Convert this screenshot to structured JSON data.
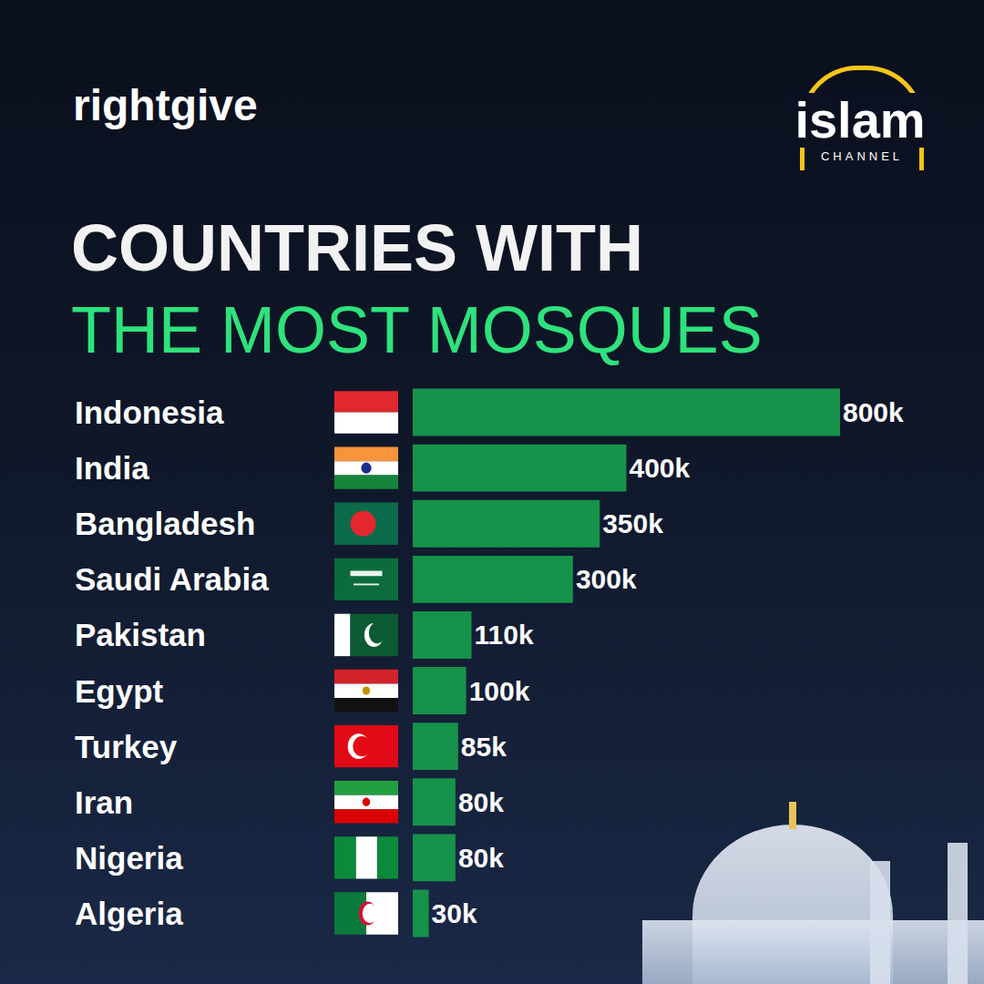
{
  "header": {
    "brand": "rightgive",
    "logo": "islam",
    "logo_subtext": "CHANNEL"
  },
  "chart_data": {
    "type": "bar",
    "orientation": "horizontal",
    "title": "COUNTRIES WITH",
    "subtitle": "THE MOST MOSQUES",
    "categories": [
      "Indonesia",
      "India",
      "Bangladesh",
      "Saudi Arabia",
      "Pakistan",
      "Egypt",
      "Turkey",
      "Iran",
      "Nigeria",
      "Algeria"
    ],
    "values": [
      800000,
      400000,
      350000,
      300000,
      110000,
      100000,
      85000,
      80000,
      80000,
      30000
    ],
    "value_labels": [
      "800k",
      "400k",
      "350k",
      "300k",
      "110k",
      "100k",
      "85k",
      "80k",
      "80k",
      "30k"
    ],
    "data_labels": true,
    "color": "#16924a",
    "xlim": [
      0,
      800000
    ],
    "tick_labels": false,
    "grid": false
  }
}
